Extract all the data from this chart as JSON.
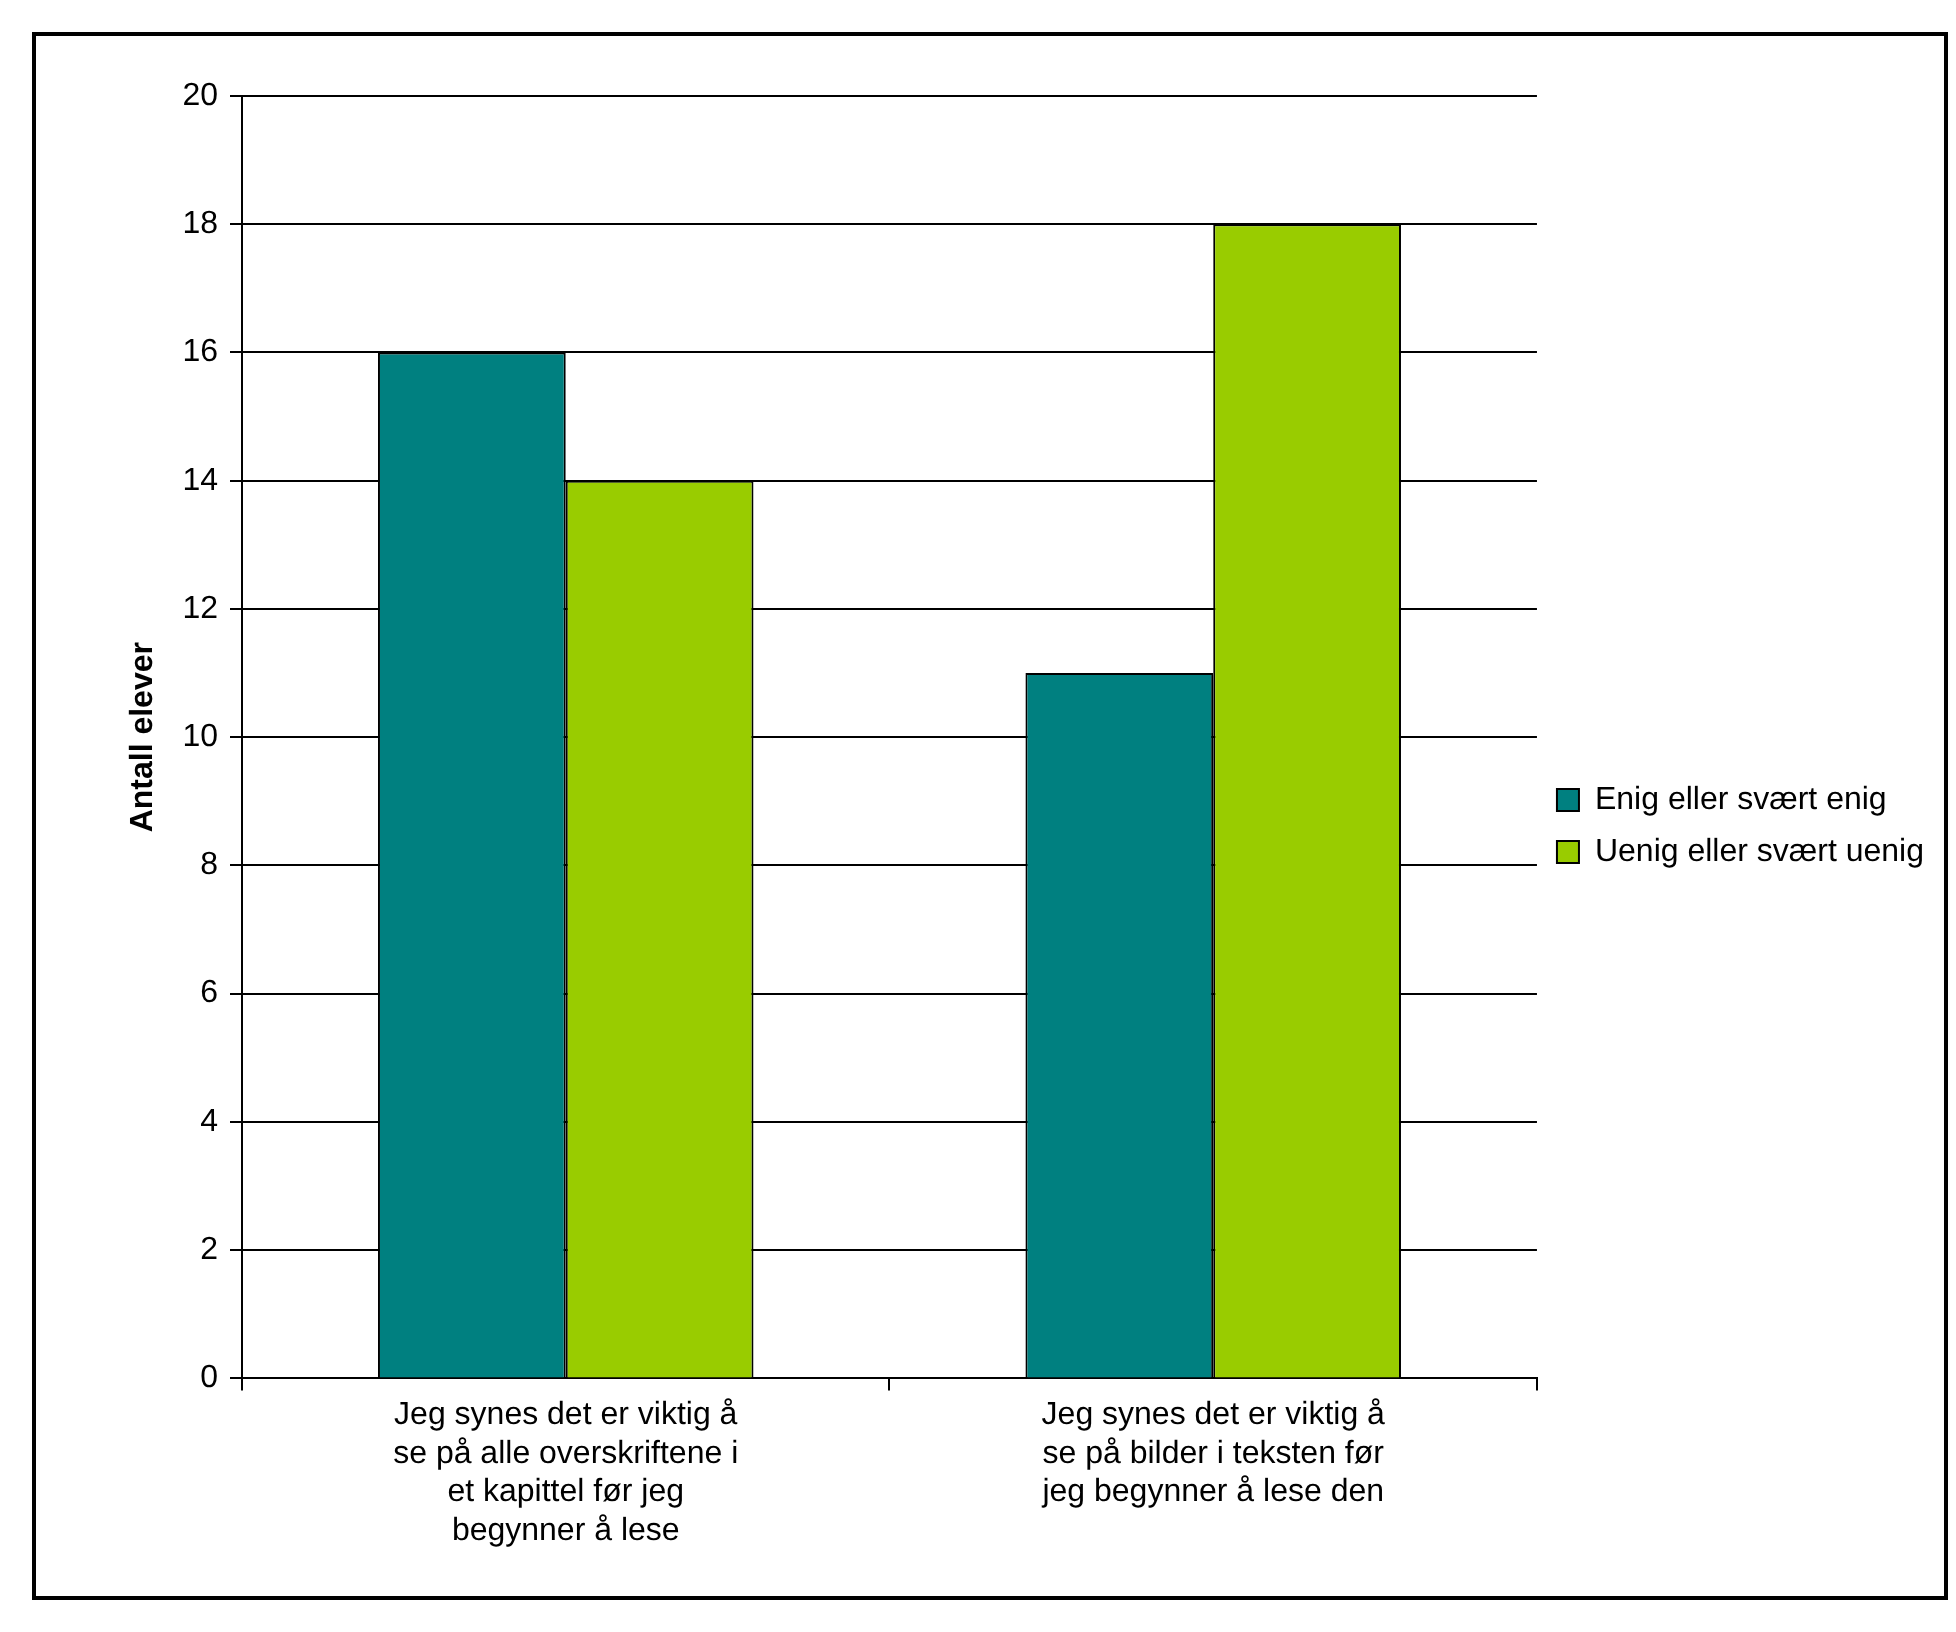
{
  "chart_data": {
    "type": "bar",
    "ylabel": "Antall elever",
    "categories": [
      "Jeg synes det er viktig å se på alle overskriftene i et kapittel før jeg begynner å lese",
      "Jeg synes det er viktig å se på bilder i teksten før jeg begynner å lese den"
    ],
    "series": [
      {
        "name": "Enig eller svært enig",
        "color": "#008080",
        "values": [
          16,
          11
        ]
      },
      {
        "name": "Uenig eller svært uenig",
        "color": "#99cc00",
        "values": [
          14,
          18
        ]
      }
    ],
    "ylim": [
      0,
      20
    ],
    "yticks": [
      0,
      2,
      4,
      6,
      8,
      10,
      12,
      14,
      16,
      18,
      20
    ],
    "grid": "y",
    "legend": "right"
  }
}
